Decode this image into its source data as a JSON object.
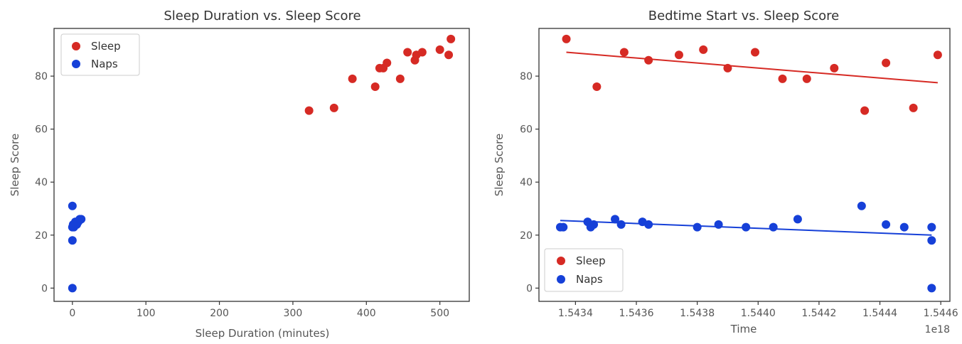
{
  "colors": {
    "sleep": "#d62a24",
    "naps": "#1640d8",
    "trend_sleep": "#d62a24",
    "trend_naps": "#1640d8"
  },
  "chart_data": [
    {
      "type": "scatter",
      "title": "Sleep Duration vs. Sleep Score",
      "xlabel": "Sleep Duration (minutes)",
      "ylabel": "Sleep Score",
      "xlim": [
        -25,
        540
      ],
      "ylim": [
        -5,
        98
      ],
      "xticks": [
        0,
        100,
        200,
        300,
        400,
        500
      ],
      "yticks": [
        0,
        20,
        40,
        60,
        80
      ],
      "legend_position": "top-left",
      "series": [
        {
          "name": "Sleep",
          "color_key": "sleep",
          "x": [
            322,
            356,
            381,
            412,
            418,
            423,
            428,
            446,
            456,
            466,
            468,
            476,
            500,
            512,
            515
          ],
          "y": [
            67,
            68,
            79,
            76,
            83,
            83,
            85,
            79,
            89,
            86,
            88,
            89,
            90,
            88,
            94
          ]
        },
        {
          "name": "Naps",
          "color_key": "naps",
          "x": [
            0,
            0,
            0,
            0,
            1,
            2,
            4,
            6,
            8,
            10,
            12
          ],
          "y": [
            31,
            18,
            0,
            23,
            24,
            23,
            25,
            24,
            25,
            26,
            26
          ]
        }
      ]
    },
    {
      "type": "scatter",
      "title": "Bedtime Start vs. Sleep Score",
      "xlabel": "Time",
      "ylabel": "Sleep Score",
      "x_offset_label": "1e18",
      "xlim": [
        1.54328,
        1.54463
      ],
      "ylim": [
        -5,
        98
      ],
      "xticks": [
        1.5434,
        1.5436,
        1.5438,
        1.544,
        1.5442,
        1.5444,
        1.5446
      ],
      "xtick_labels": [
        "1.5434",
        "1.5436",
        "1.5438",
        "1.5440",
        "1.5442",
        "1.5444",
        "1.5446"
      ],
      "yticks": [
        0,
        20,
        40,
        60,
        80
      ],
      "legend_position": "bottom-left",
      "series": [
        {
          "name": "Sleep",
          "color_key": "sleep",
          "x": [
            1.54337,
            1.54347,
            1.54356,
            1.54364,
            1.54374,
            1.54382,
            1.5439,
            1.54399,
            1.54408,
            1.54416,
            1.54425,
            1.54435,
            1.54442,
            1.54451,
            1.54459
          ],
          "y": [
            94,
            76,
            89,
            86,
            88,
            90,
            83,
            89,
            79,
            79,
            83,
            67,
            85,
            68,
            88
          ]
        },
        {
          "name": "Naps",
          "color_key": "naps",
          "x": [
            1.54335,
            1.54336,
            1.54344,
            1.54345,
            1.54346,
            1.54353,
            1.54355,
            1.54362,
            1.54364,
            1.5438,
            1.54387,
            1.54396,
            1.54405,
            1.54413,
            1.54434,
            1.54442,
            1.54448,
            1.54457,
            1.54457,
            1.54457
          ],
          "y": [
            23,
            23,
            25,
            23,
            24,
            26,
            24,
            25,
            24,
            23,
            24,
            23,
            23,
            26,
            31,
            24,
            23,
            23,
            18,
            0
          ]
        }
      ],
      "trendlines": [
        {
          "color_key": "trend_sleep",
          "x": [
            1.54337,
            1.54459
          ],
          "y": [
            89,
            77.5
          ]
        },
        {
          "color_key": "trend_naps",
          "x": [
            1.54335,
            1.54457
          ],
          "y": [
            25.5,
            20
          ]
        }
      ]
    }
  ]
}
